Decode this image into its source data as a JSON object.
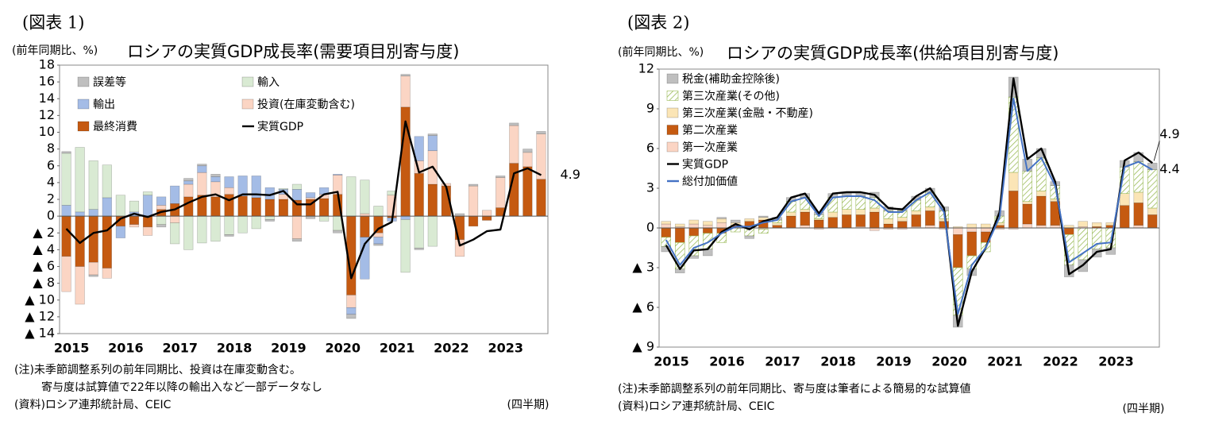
{
  "chart_data": [
    {
      "type": "bar",
      "figure_label": "(図表 1)",
      "unit_label": "(前年同期比、%)",
      "title": "ロシアの実質GDP成長率(需要項目別寄与度)",
      "x_label": "(四半期)",
      "notes": [
        "(注)未季節調整系列の前年同期比、投資は在庫変動含む。",
        "寄与度は試算値で22年以降の輸出入など一部データなし",
        "(資料)ロシア連邦統計局、CEIC"
      ],
      "categories": [
        "2015",
        null,
        null,
        null,
        "2016",
        null,
        null,
        null,
        "2017",
        null,
        null,
        null,
        "2018",
        null,
        null,
        null,
        "2019",
        null,
        null,
        null,
        "2020",
        null,
        null,
        null,
        "2021",
        null,
        null,
        null,
        "2022",
        null,
        null,
        null,
        "2023",
        null,
        null,
        null
      ],
      "ylim": [
        -14,
        18
      ],
      "yticks": [
        18,
        16,
        14,
        12,
        10,
        8,
        6,
        4,
        2,
        0,
        {
          "value": -2,
          "label": "▲ 2"
        },
        {
          "value": -4,
          "label": "▲ 4"
        },
        {
          "value": -6,
          "label": "▲ 6"
        },
        {
          "value": -8,
          "label": "▲ 8"
        },
        {
          "value": -10,
          "label": "▲ 10"
        },
        {
          "value": -12,
          "label": "▲ 12"
        },
        {
          "value": -14,
          "label": "▲ 14"
        }
      ],
      "grid": false,
      "series": [
        {
          "name": "誤差等",
          "type": "bar",
          "color": "#bfbfbf",
          "values": [
            0.2,
            0,
            -0.2,
            0,
            0,
            0,
            0,
            -0.3,
            0,
            0.3,
            0.2,
            0.3,
            -0.2,
            0,
            0,
            -0.2,
            0,
            -0.3,
            -0.3,
            0,
            -0.3,
            -0.5,
            0,
            -0.2,
            0,
            0.2,
            -0.2,
            0.2,
            0,
            0.3,
            0.2,
            0,
            0.2,
            0.3,
            0.4,
            0.3
          ]
        },
        {
          "name": "輸入",
          "type": "bar",
          "color": "#d9ead3",
          "values": [
            6.2,
            7.7,
            5.8,
            3.9,
            2.5,
            1.3,
            0.4,
            -1.0,
            -2.5,
            -4.0,
            -3.2,
            -3.0,
            -2.2,
            -2.0,
            -1.5,
            -0.4,
            0.1,
            0.6,
            0,
            -0.6,
            -1.7,
            4.7,
            4.0,
            1.2,
            0.5,
            -6.3,
            -3.8,
            -3.6,
            null,
            null,
            null,
            null,
            null,
            null,
            null,
            null
          ]
        },
        {
          "name": "輸出",
          "type": "bar",
          "color": "#a4bce6",
          "values": [
            1.3,
            0.5,
            0.8,
            2.2,
            -1.4,
            0.5,
            2.5,
            1.0,
            2.1,
            0.4,
            0.8,
            0.6,
            1.3,
            2.4,
            2.6,
            1.4,
            0.6,
            1.3,
            0.6,
            0.8,
            0.1,
            -0.8,
            -5.0,
            -0.8,
            -0.4,
            -0.4,
            2.9,
            1.8,
            null,
            null,
            null,
            null,
            null,
            null,
            null,
            null
          ]
        },
        {
          "name": "投資(在庫変動含む)",
          "type": "bar",
          "color": "#fbd5c4",
          "values": [
            -4.2,
            -4.5,
            -1.5,
            -1.2,
            0,
            -0.3,
            -1.0,
            0.5,
            -0.8,
            1.5,
            2.7,
            1.8,
            0.8,
            0,
            0,
            0,
            0.6,
            -2.7,
            0.2,
            0.5,
            2.3,
            -1.5,
            0.3,
            -0.5,
            2.5,
            3.7,
            1.5,
            4.0,
            0.3,
            -2.0,
            3.6,
            0.7,
            3.6,
            4.5,
            1.7,
            5.4
          ]
        },
        {
          "name": "最終消費",
          "type": "bar",
          "color": "#c55a11",
          "values": [
            -4.8,
            -6.0,
            -5.5,
            -6.2,
            -1.2,
            -1.0,
            -1.3,
            0.8,
            1.5,
            2.3,
            2.5,
            2.3,
            2.6,
            2.4,
            2.2,
            2.0,
            2.0,
            1.9,
            2.0,
            2.1,
            2.6,
            -9.4,
            -2.5,
            -2.0,
            -0.2,
            13.0,
            5.1,
            3.8,
            3.6,
            -2.8,
            -1.2,
            -0.5,
            1.0,
            6.3,
            5.9,
            4.4
          ]
        },
        {
          "name": "実質GDP",
          "type": "line",
          "color": "#000000",
          "values": [
            -1.5,
            -3.2,
            -2.0,
            -1.7,
            -0.3,
            0.3,
            -0.1,
            0.5,
            0.8,
            1.6,
            2.3,
            2.6,
            1.9,
            2.6,
            2.6,
            2.5,
            3.0,
            1.4,
            1.4,
            2.6,
            2.9,
            -7.4,
            -3.3,
            -1.5,
            -0.7,
            11.3,
            5.2,
            5.9,
            3.5,
            -3.5,
            -2.8,
            -1.8,
            -1.6,
            5.1,
            5.7,
            4.9
          ]
        }
      ],
      "annotations": [
        "4.9"
      ]
    },
    {
      "type": "bar",
      "figure_label": "(図表 2)",
      "unit_label": "(前年同期比、%)",
      "title": "ロシアの実質GDP成長率(供給項目別寄与度)",
      "x_label": "(四半期)",
      "notes": [
        "(注)未季節調整系列の前年同期比、寄与度は筆者による簡易的な試算値",
        "(資料)ロシア連邦統計局、CEIC"
      ],
      "categories": [
        "2015",
        null,
        null,
        null,
        "2016",
        null,
        null,
        null,
        "2017",
        null,
        null,
        null,
        "2018",
        null,
        null,
        null,
        "2019",
        null,
        null,
        null,
        "2020",
        null,
        null,
        null,
        "2021",
        null,
        null,
        null,
        "2022",
        null,
        null,
        null,
        "2023",
        null,
        null,
        null
      ],
      "ylim": [
        -9,
        12
      ],
      "yticks": [
        12,
        9,
        6,
        3,
        0,
        {
          "value": -3,
          "label": "▲ 3"
        },
        {
          "value": -6,
          "label": "▲ 6"
        },
        {
          "value": -9,
          "label": "▲ 9"
        }
      ],
      "grid": false,
      "series": [
        {
          "name": "税金(補助金控除後)",
          "type": "bar",
          "color": "#bfbfbf",
          "values": [
            -0.4,
            -0.3,
            -0.2,
            -0.5,
            0.1,
            0.2,
            -0.2,
            0.1,
            0.2,
            0.3,
            0.3,
            0.2,
            0.3,
            0.3,
            0.3,
            0.4,
            0.3,
            0.2,
            0.3,
            0.3,
            0.3,
            -0.9,
            -0.5,
            0,
            0.4,
            1.5,
            0.9,
            0.7,
            0.3,
            -0.9,
            -0.9,
            -0.6,
            -0.5,
            0.5,
            0.7,
            0.5
          ]
        },
        {
          "name": "第三次産業(その他)",
          "type": "bar",
          "color": "#9bbb59",
          "pattern": "hatch",
          "values": [
            -0.7,
            -2.0,
            -1.5,
            -1.2,
            -0.7,
            -0.3,
            -0.6,
            -0.3,
            0.2,
            0.8,
            0.9,
            0.3,
            1.1,
            1.0,
            1.0,
            0.8,
            0.6,
            0.5,
            0.8,
            1.1,
            0.6,
            -3.6,
            -1.0,
            -0.7,
            0.5,
            5.7,
            2.3,
            2.5,
            1.0,
            -2.3,
            -2.4,
            -1.6,
            -1.5,
            2.0,
            2.3,
            2.9
          ]
        },
        {
          "name": "第三次産業(金融・不動産)",
          "type": "bar",
          "color": "#fbe5b6",
          "values": [
            0.2,
            0.2,
            0.3,
            0.3,
            0.3,
            0.2,
            0.2,
            0.2,
            0.2,
            0.3,
            0.2,
            0.1,
            0.4,
            0.4,
            0.4,
            0.3,
            0.4,
            0.3,
            0.3,
            0.3,
            0.2,
            0.1,
            0.3,
            0.3,
            0.2,
            1.4,
            0.2,
            0.4,
            0.2,
            0.2,
            0.4,
            0.3,
            0.2,
            0.9,
            0.8,
            0.5
          ]
        },
        {
          "name": "第二次産業",
          "type": "bar",
          "color": "#c55a11",
          "values": [
            -0.7,
            -1.1,
            -0.6,
            -0.4,
            -0.4,
            0.1,
            0.4,
            0.6,
            0.2,
            0.9,
            1.0,
            0.6,
            0.8,
            1.0,
            0.9,
            1.2,
            0.3,
            0.5,
            0.9,
            1.1,
            0.5,
            -2.5,
            -1.8,
            -0.8,
            0.2,
            2.8,
            1.5,
            2.2,
            1.8,
            -0.5,
            0,
            0.1,
            0.2,
            1.7,
            1.7,
            1.0
          ]
        },
        {
          "name": "第一次産業",
          "type": "bar",
          "color": "#fbd5c4",
          "values": [
            0.3,
            0.1,
            0.3,
            0.2,
            0.4,
            0.1,
            0.1,
            -0.1,
            0,
            0,
            0.2,
            -0.1,
            0,
            0,
            0.1,
            -0.2,
            -0.1,
            -0.1,
            0.1,
            0.2,
            -0.1,
            -0.5,
            -0.3,
            -0.3,
            -0.1,
            -0.1,
            0.3,
            0.2,
            0.2,
            0,
            0.1,
            0,
            0,
            0,
            0.2,
            0
          ]
        },
        {
          "name": "実質GDP",
          "type": "line",
          "color": "#000000",
          "values": [
            -1.3,
            -3.1,
            -1.7,
            -1.6,
            -0.3,
            0.3,
            -0.1,
            0.5,
            0.8,
            2.3,
            2.6,
            1.1,
            2.6,
            2.7,
            2.7,
            2.5,
            1.5,
            1.4,
            2.4,
            3.0,
            1.5,
            -7.4,
            -3.3,
            -1.5,
            1.2,
            11.3,
            5.2,
            6.0,
            3.5,
            -3.5,
            -2.8,
            -1.8,
            -1.6,
            5.1,
            5.7,
            4.9
          ]
        },
        {
          "name": "総付加価値",
          "type": "line",
          "color": "#4472c4",
          "values": [
            -0.9,
            -2.8,
            -1.5,
            -1.1,
            -0.4,
            0.1,
            0.1,
            0.4,
            0.6,
            2.0,
            2.3,
            0.9,
            2.3,
            2.4,
            2.4,
            2.1,
            1.2,
            1.2,
            2.1,
            2.7,
            1.2,
            -6.5,
            -2.8,
            -1.5,
            0.8,
            9.8,
            4.3,
            5.3,
            3.2,
            -2.6,
            -1.9,
            -1.2,
            -1.1,
            4.6,
            5.0,
            4.4
          ]
        }
      ],
      "annotations": [
        "4.9",
        "4.4"
      ]
    }
  ]
}
